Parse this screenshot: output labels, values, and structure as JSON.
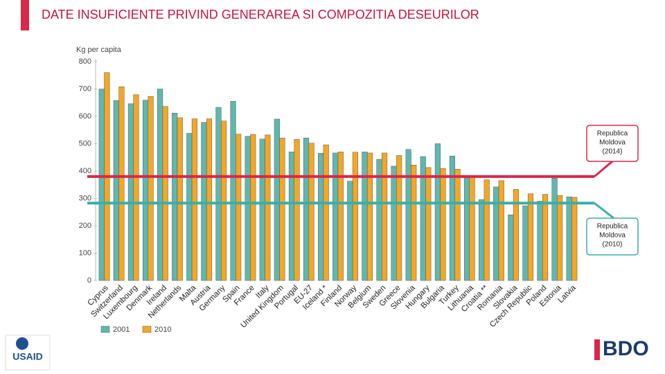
{
  "chart_data": {
    "type": "bar",
    "title": "DATE INSUFICIENTE PRIVIND GENERAREA SI COMPOZITIA DESEURILOR",
    "y_label": "Kg per capita",
    "categories": [
      "Cyprus",
      "Switzerland",
      "Luxembourg",
      "Denmark",
      "Ireland",
      "Netherlands",
      "Malta",
      "Austria",
      "Germany",
      "Spain",
      "France",
      "Italy",
      "United Kingdom",
      "Portugal",
      "EU-27",
      "Iceland *",
      "Finland",
      "Norway",
      "Belgium",
      "Sweden",
      "Greece",
      "Slovenia",
      "Hungary",
      "Bulgaria",
      "Turkey",
      "Lithuania",
      "Croatia **",
      "Romania",
      "Slovakia",
      "Czech Republic",
      "Poland",
      "Estonia",
      "Latvia"
    ],
    "series": [
      {
        "name": "2001",
        "color": "#5fb8b0",
        "values": [
          700,
          658,
          646,
          659,
          700,
          612,
          538,
          578,
          633,
          655,
          527,
          517,
          590,
          470,
          521,
          465,
          466,
          363,
          470,
          443,
          418,
          479,
          453,
          500,
          455,
          375,
          296,
          342,
          240,
          273,
          290,
          374,
          306
        ]
      },
      {
        "name": "2010",
        "color": "#f5a623",
        "values": [
          760,
          708,
          679,
          673,
          636,
          595,
          591,
          591,
          583,
          535,
          534,
          532,
          521,
          516,
          502,
          496,
          470,
          469,
          466,
          466,
          457,
          422,
          413,
          410,
          407,
          381,
          368,
          365,
          333,
          317,
          315,
          311,
          304
        ]
      }
    ],
    "ylim": [
      0,
      800
    ],
    "yticks": [
      0,
      100,
      200,
      300,
      400,
      500,
      600,
      700,
      800
    ],
    "reference_lines": [
      {
        "label": [
          "Republica",
          "Moldova",
          "(2014)"
        ],
        "value": 380,
        "color": "#d9284a"
      },
      {
        "label": [
          "Republica",
          "Moldova",
          "(2010)"
        ],
        "value": 283,
        "color": "#3aaea8"
      }
    ]
  },
  "logos": {
    "left": "USAID",
    "right": "BDO"
  }
}
